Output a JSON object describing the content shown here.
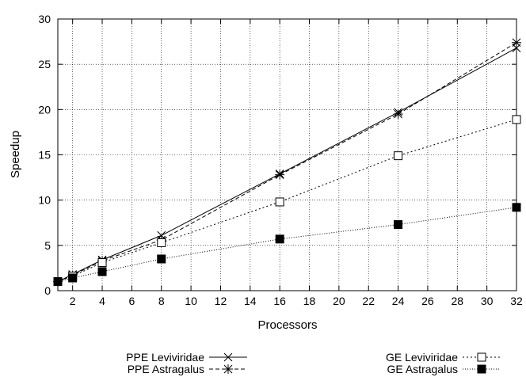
{
  "chart_data": {
    "type": "line",
    "title": "",
    "xlabel": "Processors",
    "ylabel": "Speedup",
    "xlim": [
      1,
      32
    ],
    "ylim": [
      0,
      30
    ],
    "xticks": [
      2,
      4,
      6,
      8,
      10,
      12,
      14,
      16,
      18,
      20,
      22,
      24,
      26,
      28,
      30,
      32
    ],
    "yticks": [
      0,
      5,
      10,
      15,
      20,
      25,
      30
    ],
    "grid": true,
    "legend_position": "bottom",
    "x": [
      1,
      2,
      4,
      8,
      16,
      24,
      32
    ],
    "series": [
      {
        "name": "PPE Leviviridae",
        "values": [
          1,
          1.8,
          3.4,
          6.1,
          12.9,
          19.7,
          26.8
        ],
        "line": "solid",
        "marker": "x"
      },
      {
        "name": "PPE Astragalus",
        "values": [
          1,
          1.7,
          3.3,
          5.6,
          12.8,
          19.5,
          27.4
        ],
        "line": "dashed",
        "marker": "star"
      },
      {
        "name": "GE Leviviridae",
        "values": [
          1,
          1.6,
          3.1,
          5.3,
          9.8,
          14.9,
          18.9
        ],
        "line": "dotted",
        "marker": "open-square"
      },
      {
        "name": "GE Astragalus",
        "values": [
          1,
          1.4,
          2.1,
          3.5,
          5.7,
          7.3,
          9.2
        ],
        "line": "dotted-fine",
        "marker": "filled-square"
      }
    ]
  }
}
